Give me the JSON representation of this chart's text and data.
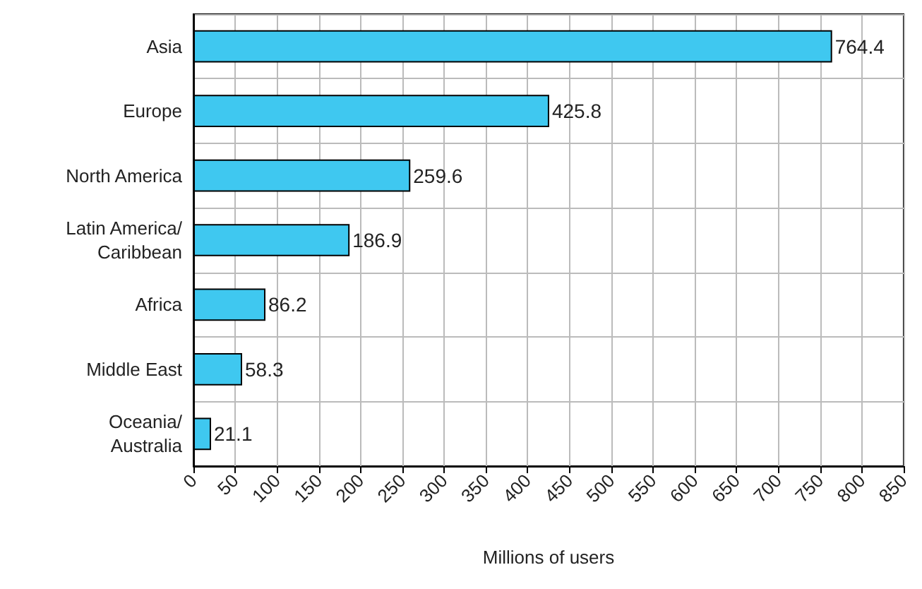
{
  "chart_data": {
    "type": "bar",
    "orientation": "horizontal",
    "xlabel": "Millions of users",
    "categories": [
      "Asia",
      "Europe",
      "North America",
      "Latin America/Caribbean",
      "Africa",
      "Middle East",
      "Oceania/Australia"
    ],
    "values": [
      764.4,
      425.8,
      259.6,
      186.9,
      86.2,
      58.3,
      21.1
    ],
    "color": "#3fc8f0",
    "data_labels": true,
    "grid": true,
    "xlim": [
      0,
      850
    ],
    "xticks": [
      0,
      50,
      100,
      150,
      200,
      250,
      300,
      350,
      400,
      450,
      500,
      550,
      600,
      650,
      700,
      750,
      800,
      850
    ]
  }
}
